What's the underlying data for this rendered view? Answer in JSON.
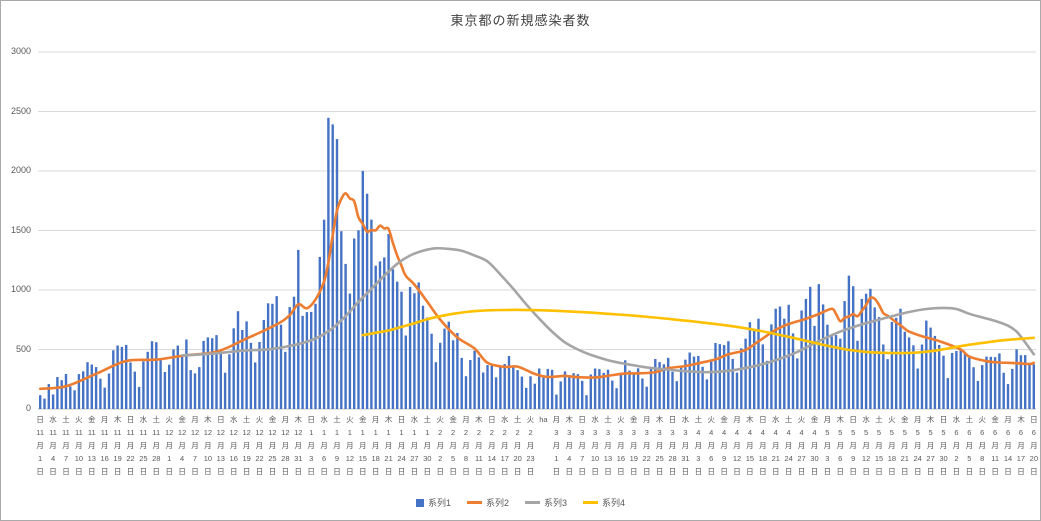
{
  "chart_data": {
    "type": "combo",
    "title": "東京都の新規感染者数",
    "ylim": [
      0,
      3000
    ],
    "yticks": [
      0,
      500,
      1000,
      1500,
      2000,
      2500,
      3000
    ],
    "grid": true,
    "legend_position": "bottom",
    "x_tick_interval_days": 3,
    "x_ticks": [
      [
        "日",
        "11",
        "1"
      ],
      [
        "水",
        "11",
        "4"
      ],
      [
        "土",
        "11",
        "7"
      ],
      [
        "火",
        "11",
        "10"
      ],
      [
        "金",
        "11",
        "13"
      ],
      [
        "月",
        "11",
        "16"
      ],
      [
        "木",
        "11",
        "19"
      ],
      [
        "日",
        "11",
        "22"
      ],
      [
        "水",
        "11",
        "25"
      ],
      [
        "土",
        "11",
        "28"
      ],
      [
        "火",
        "12",
        "1"
      ],
      [
        "金",
        "12",
        "4"
      ],
      [
        "月",
        "12",
        "7"
      ],
      [
        "木",
        "12",
        "10"
      ],
      [
        "日",
        "12",
        "13"
      ],
      [
        "水",
        "12",
        "16"
      ],
      [
        "土",
        "12",
        "19"
      ],
      [
        "火",
        "12",
        "22"
      ],
      [
        "金",
        "12",
        "25"
      ],
      [
        "月",
        "12",
        "28"
      ],
      [
        "木",
        "12",
        "31"
      ],
      [
        "日",
        "1",
        "3"
      ],
      [
        "水",
        "1",
        "6"
      ],
      [
        "土",
        "1",
        "9"
      ],
      [
        "火",
        "1",
        "12"
      ],
      [
        "金",
        "1",
        "15"
      ],
      [
        "月",
        "1",
        "18"
      ],
      [
        "木",
        "1",
        "21"
      ],
      [
        "日",
        "1",
        "24"
      ],
      [
        "水",
        "1",
        "27"
      ],
      [
        "土",
        "1",
        "30"
      ],
      [
        "火",
        "2",
        "2"
      ],
      [
        "金",
        "2",
        "5"
      ],
      [
        "月",
        "2",
        "8"
      ],
      [
        "木",
        "2",
        "11"
      ],
      [
        "日",
        "2",
        "14"
      ],
      [
        "水",
        "2",
        "17"
      ],
      [
        "土",
        "2",
        "20"
      ],
      [
        "火",
        "2",
        "23"
      ],
      [
        "ha"
      ],
      [
        "月",
        "3",
        "1"
      ],
      [
        "木",
        "3",
        "4"
      ],
      [
        "日",
        "3",
        "7"
      ],
      [
        "水",
        "3",
        "10"
      ],
      [
        "土",
        "3",
        "13"
      ],
      [
        "火",
        "3",
        "16"
      ],
      [
        "金",
        "3",
        "19"
      ],
      [
        "月",
        "3",
        "22"
      ],
      [
        "木",
        "3",
        "25"
      ],
      [
        "日",
        "3",
        "28"
      ],
      [
        "水",
        "3",
        "31"
      ],
      [
        "土",
        "4",
        "3"
      ],
      [
        "火",
        "4",
        "6"
      ],
      [
        "金",
        "4",
        "9"
      ],
      [
        "月",
        "4",
        "12"
      ],
      [
        "木",
        "4",
        "15"
      ],
      [
        "日",
        "4",
        "18"
      ],
      [
        "水",
        "4",
        "21"
      ],
      [
        "土",
        "4",
        "24"
      ],
      [
        "火",
        "4",
        "27"
      ],
      [
        "金",
        "4",
        "30"
      ],
      [
        "月",
        "5",
        "3"
      ],
      [
        "木",
        "5",
        "6"
      ],
      [
        "日",
        "5",
        "9"
      ],
      [
        "水",
        "5",
        "12"
      ],
      [
        "土",
        "5",
        "15"
      ],
      [
        "火",
        "5",
        "18"
      ],
      [
        "金",
        "5",
        "21"
      ],
      [
        "月",
        "5",
        "24"
      ],
      [
        "木",
        "5",
        "27"
      ],
      [
        "日",
        "5",
        "30"
      ],
      [
        "水",
        "6",
        "2"
      ],
      [
        "土",
        "6",
        "5"
      ],
      [
        "火",
        "6",
        "8"
      ],
      [
        "金",
        "6",
        "11"
      ],
      [
        "月",
        "6",
        "14"
      ],
      [
        "木",
        "6",
        "17"
      ],
      [
        "日",
        "6",
        "20"
      ]
    ],
    "series": [
      {
        "name": "系列1",
        "type": "bar",
        "color": "#4472C4",
        "values": [
          116,
          87,
          209,
          122,
          269,
          242,
          294,
          189,
          157,
          293,
          317,
          393,
          374,
          352,
          255,
          180,
          298,
          493,
          534,
          522,
          539,
          391,
          314,
          186,
          401,
          481,
          570,
          561,
          418,
          311,
          372,
          500,
          533,
          449,
          584,
          327,
          299,
          352,
          572,
          602,
          595,
          621,
          480,
          305,
          460,
          678,
          822,
          664,
          736,
          556,
          392,
          563,
          748,
          888,
          884,
          949,
          708,
          481,
          856,
          944,
          1337,
          783,
          814,
          816,
          884,
          1278,
          1591,
          2447,
          2392,
          2268,
          1494,
          1219,
          970,
          1433,
          1502,
          2001,
          1809,
          1592,
          1204,
          1240,
          1274,
          1471,
          1175,
          1070,
          986,
          618,
          1026,
          973,
          1064,
          868,
          769,
          633,
          393,
          556,
          676,
          734,
          577,
          639,
          429,
          276,
          412,
          491,
          434,
          307,
          369,
          371,
          266,
          350,
          378,
          445,
          353,
          327,
          272,
          178,
          275,
          213,
          340,
          270,
          337,
          329,
          121,
          232,
          316,
          279,
          301,
          293,
          237,
          116,
          290,
          340,
          335,
          304,
          330,
          239,
          175,
          300,
          409,
          323,
          303,
          342,
          256,
          187,
          337,
          420,
          394,
          376,
          430,
          313,
          234,
          364,
          414,
          475,
          440,
          446,
          355,
          249,
          399,
          555,
          545,
          537,
          570,
          421,
          306,
          510,
          591,
          729,
          667,
          759,
          543,
          405,
          711,
          843,
          861,
          759,
          876,
          635,
          425,
          828,
          925,
          1027,
          698,
          1050,
          879,
          708,
          609,
          621,
          591,
          907,
          1121,
          1032,
          573,
          925,
          969,
          1010,
          854,
          772,
          542,
          419,
          732,
          766,
          843,
          649,
          602,
          535,
          340,
          542,
          743,
          684,
          614,
          539,
          448,
          260,
          471,
          487,
          508,
          472,
          436,
          351,
          235,
          369,
          440,
          439,
          435,
          467,
          304,
          209,
          337,
          501,
          452,
          453,
          388,
          376
        ]
      },
      {
        "name": "系列2",
        "type": "line",
        "color": "#ED7D31",
        "points": [
          [
            0,
            170
          ],
          [
            6,
            191
          ],
          [
            13,
            296
          ],
          [
            20,
            403
          ],
          [
            27,
            415
          ],
          [
            34,
            452
          ],
          [
            41,
            481
          ],
          [
            48,
            592
          ],
          [
            55,
            711
          ],
          [
            58,
            788
          ],
          [
            60,
            880
          ],
          [
            62,
            846
          ],
          [
            64,
            919
          ],
          [
            66,
            1072
          ],
          [
            67,
            1230
          ],
          [
            68,
            1460
          ],
          [
            69,
            1668
          ],
          [
            70,
            1765
          ],
          [
            71,
            1813
          ],
          [
            72,
            1769
          ],
          [
            73,
            1746
          ],
          [
            74,
            1611
          ],
          [
            75,
            1555
          ],
          [
            76,
            1490
          ],
          [
            77,
            1504
          ],
          [
            78,
            1502
          ],
          [
            79,
            1540
          ],
          [
            80,
            1517
          ],
          [
            81,
            1513
          ],
          [
            82,
            1395
          ],
          [
            83,
            1289
          ],
          [
            84,
            1203
          ],
          [
            85,
            1119
          ],
          [
            87,
            1046
          ],
          [
            90,
            901
          ],
          [
            93,
            751
          ],
          [
            97,
            601
          ],
          [
            101,
            508
          ],
          [
            104,
            388
          ],
          [
            108,
            354
          ],
          [
            111,
            356
          ],
          [
            115,
            295
          ],
          [
            118,
            269
          ],
          [
            122,
            278
          ],
          [
            125,
            267
          ],
          [
            129,
            265
          ],
          [
            132,
            279
          ],
          [
            136,
            299
          ],
          [
            139,
            299
          ],
          [
            143,
            310
          ],
          [
            146,
            343
          ],
          [
            150,
            361
          ],
          [
            153,
            384
          ],
          [
            157,
            417
          ],
          [
            160,
            459
          ],
          [
            164,
            497
          ],
          [
            167,
            569
          ],
          [
            171,
            665
          ],
          [
            174,
            714
          ],
          [
            178,
            758
          ],
          [
            181,
            798
          ],
          [
            184,
            842
          ],
          [
            185,
            799
          ],
          [
            186,
            737
          ],
          [
            187,
            766
          ],
          [
            188,
            777
          ],
          [
            189,
            798
          ],
          [
            190,
            779
          ],
          [
            191,
            824
          ],
          [
            192,
            874
          ],
          [
            193,
            934
          ],
          [
            194,
            926
          ],
          [
            195,
            876
          ],
          [
            196,
            806
          ],
          [
            197,
            784
          ],
          [
            198,
            757
          ],
          [
            199,
            728
          ],
          [
            200,
            704
          ],
          [
            201,
            675
          ],
          [
            202,
            650
          ],
          [
            205,
            611
          ],
          [
            209,
            571
          ],
          [
            214,
            500
          ],
          [
            216,
            440
          ],
          [
            220,
            402
          ],
          [
            223,
            391
          ],
          [
            227,
            385
          ],
          [
            230,
            378
          ],
          [
            231,
            388
          ]
        ]
      },
      {
        "name": "系列3",
        "type": "line",
        "color": "#A5A5A5",
        "points": [
          [
            33,
            450
          ],
          [
            40,
            465
          ],
          [
            47,
            490
          ],
          [
            54,
            505
          ],
          [
            61,
            555
          ],
          [
            65,
            610
          ],
          [
            68,
            680
          ],
          [
            71,
            780
          ],
          [
            74,
            900
          ],
          [
            77,
            1010
          ],
          [
            80,
            1120
          ],
          [
            83,
            1220
          ],
          [
            86,
            1290
          ],
          [
            89,
            1330
          ],
          [
            92,
            1350
          ],
          [
            95,
            1345
          ],
          [
            98,
            1330
          ],
          [
            101,
            1290
          ],
          [
            104,
            1240
          ],
          [
            107,
            1130
          ],
          [
            110,
            1010
          ],
          [
            113,
            880
          ],
          [
            116,
            760
          ],
          [
            119,
            650
          ],
          [
            122,
            560
          ],
          [
            125,
            500
          ],
          [
            128,
            455
          ],
          [
            132,
            410
          ],
          [
            136,
            380
          ],
          [
            141,
            350
          ],
          [
            146,
            330
          ],
          [
            151,
            315
          ],
          [
            156,
            310
          ],
          [
            161,
            325
          ],
          [
            166,
            360
          ],
          [
            171,
            410
          ],
          [
            176,
            480
          ],
          [
            181,
            570
          ],
          [
            186,
            650
          ],
          [
            190,
            700
          ],
          [
            194,
            740
          ],
          [
            198,
            780
          ],
          [
            202,
            815
          ],
          [
            206,
            840
          ],
          [
            210,
            850
          ],
          [
            213,
            840
          ],
          [
            216,
            800
          ],
          [
            219,
            770
          ],
          [
            222,
            740
          ],
          [
            225,
            700
          ],
          [
            227,
            650
          ],
          [
            229,
            560
          ],
          [
            231,
            460
          ]
        ]
      },
      {
        "name": "系列4",
        "type": "line",
        "color": "#FFC000",
        "points": [
          [
            75,
            620
          ],
          [
            78,
            640
          ],
          [
            81,
            660
          ],
          [
            84,
            690
          ],
          [
            87,
            720
          ],
          [
            90,
            755
          ],
          [
            93,
            780
          ],
          [
            96,
            800
          ],
          [
            99,
            815
          ],
          [
            102,
            825
          ],
          [
            105,
            830
          ],
          [
            108,
            832
          ],
          [
            112,
            833
          ],
          [
            116,
            830
          ],
          [
            120,
            825
          ],
          [
            124,
            818
          ],
          [
            128,
            810
          ],
          [
            132,
            800
          ],
          [
            136,
            790
          ],
          [
            140,
            778
          ],
          [
            144,
            765
          ],
          [
            148,
            750
          ],
          [
            152,
            735
          ],
          [
            156,
            718
          ],
          [
            160,
            700
          ],
          [
            164,
            678
          ],
          [
            168,
            652
          ],
          [
            172,
            622
          ],
          [
            176,
            590
          ],
          [
            180,
            556
          ],
          [
            184,
            524
          ],
          [
            188,
            497
          ],
          [
            192,
            480
          ],
          [
            196,
            472
          ],
          [
            200,
            470
          ],
          [
            204,
            475
          ],
          [
            208,
            490
          ],
          [
            212,
            515
          ],
          [
            216,
            540
          ],
          [
            220,
            560
          ],
          [
            224,
            578
          ],
          [
            228,
            590
          ],
          [
            231,
            598
          ]
        ]
      }
    ]
  },
  "colors": {
    "gridline": "#d9d9d9",
    "axis_text": "#595959",
    "title_text": "#404040"
  }
}
